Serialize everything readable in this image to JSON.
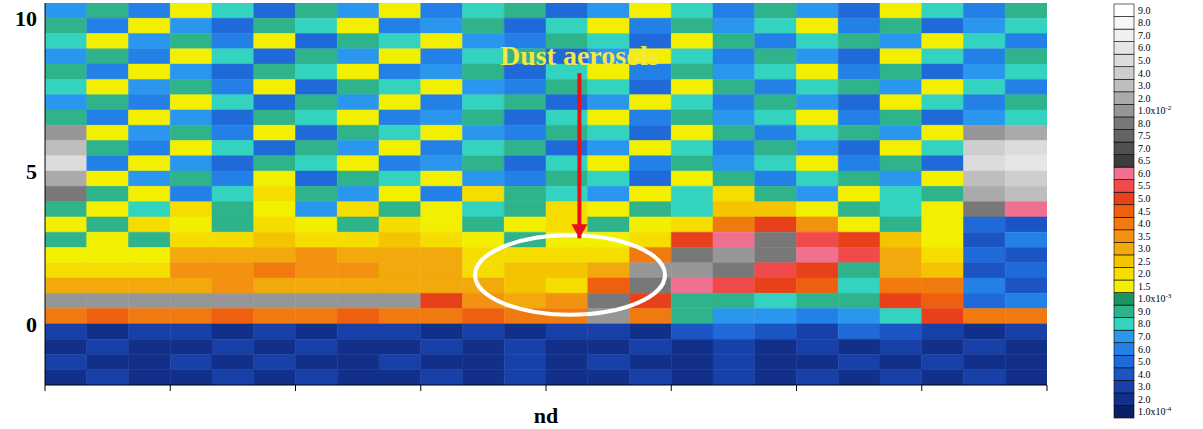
{
  "chart_data": {
    "type": "heatmap",
    "xlabel": "nd",
    "xlim": [
      0,
      24
    ],
    "xticks": [
      0,
      3,
      6,
      9,
      12,
      15,
      18,
      21,
      24
    ],
    "ylim": [
      -2,
      10.5
    ],
    "yticks": [
      0,
      5,
      10
    ],
    "tick_labels": "y",
    "annotations": [
      {
        "text": "Dust aerosols",
        "xy": [
          12.8,
          2.8
        ],
        "xytext": [
          12.8,
          8.2
        ],
        "region": {
          "x": [
            10.3,
            14.85
          ],
          "y": [
            0.3,
            2.9
          ]
        }
      }
    ],
    "x_edges": [
      0,
      1,
      2,
      3,
      4,
      5,
      6,
      7,
      8,
      9,
      10,
      11,
      12,
      13,
      14,
      15,
      16,
      17,
      18,
      19,
      20,
      21,
      22,
      23,
      24
    ],
    "y_edges": [
      10.5,
      10,
      9.5,
      9,
      8.5,
      8,
      7.5,
      7,
      6.5,
      6,
      5.5,
      5,
      4.5,
      4,
      3.5,
      3,
      2.5,
      2,
      1.5,
      1,
      0.5,
      0,
      -0.5,
      -1,
      -1.5,
      -2
    ],
    "cells": [
      [
        0.0007,
        0.0009,
        0.0006,
        0.0015,
        0.0008,
        0.0005,
        0.0009,
        0.0007,
        0.0015,
        0.0006,
        0.0008,
        0.0009,
        0.0005,
        0.0007,
        0.0015,
        0.0008,
        0.0006,
        0.0009,
        0.0007,
        0.0005,
        0.0015,
        0.0008,
        0.0006,
        0.0009
      ],
      [
        0.0009,
        0.0006,
        0.0015,
        0.0007,
        0.0005,
        0.0009,
        0.0008,
        0.0015,
        0.0006,
        0.0007,
        0.0009,
        0.0005,
        0.0008,
        0.0015,
        0.0006,
        0.0009,
        0.0007,
        0.0008,
        0.0015,
        0.0006,
        0.0009,
        0.0005,
        0.0007,
        0.0008
      ],
      [
        0.0008,
        0.0015,
        0.0007,
        0.0009,
        0.0006,
        0.0015,
        0.0005,
        0.0009,
        0.0008,
        0.0015,
        0.0007,
        0.0006,
        0.0009,
        0.0008,
        0.0005,
        0.0015,
        0.0009,
        0.0006,
        0.0008,
        0.0009,
        0.0007,
        0.0015,
        0.0008,
        0.0006
      ],
      [
        0.0007,
        0.0009,
        0.0006,
        0.0015,
        0.0008,
        0.0005,
        0.0009,
        0.0007,
        0.0015,
        0.0006,
        0.0008,
        0.0009,
        0.0005,
        0.0007,
        0.0015,
        0.0008,
        0.0006,
        0.0009,
        0.0007,
        0.0005,
        0.0015,
        0.0008,
        0.0006,
        0.0009
      ],
      [
        0.0009,
        0.0006,
        0.0015,
        0.0007,
        0.0005,
        0.0009,
        0.0008,
        0.0015,
        0.0006,
        0.0007,
        0.0009,
        0.0005,
        0.0008,
        0.0015,
        0.0006,
        0.0009,
        0.0007,
        0.0008,
        0.0015,
        0.0006,
        0.0009,
        0.0005,
        0.0007,
        0.0008
      ],
      [
        0.0008,
        0.0015,
        0.0007,
        0.0009,
        0.0006,
        0.0015,
        0.0005,
        0.0009,
        0.0008,
        0.0015,
        0.0007,
        0.0006,
        0.0009,
        0.0008,
        0.0005,
        0.0015,
        0.0009,
        0.0006,
        0.0008,
        0.0009,
        0.0007,
        0.0015,
        0.0008,
        0.0006
      ],
      [
        0.0007,
        0.0009,
        0.0006,
        0.0015,
        0.0008,
        0.0005,
        0.0009,
        0.0007,
        0.0015,
        0.0006,
        0.0008,
        0.0009,
        0.0005,
        0.0007,
        0.0015,
        0.0008,
        0.0006,
        0.0009,
        0.0007,
        0.0005,
        0.0015,
        0.0008,
        0.0006,
        0.0009
      ],
      [
        0.0009,
        0.0006,
        0.0015,
        0.0007,
        0.0005,
        0.0009,
        0.0008,
        0.0015,
        0.0006,
        0.0007,
        0.0009,
        0.0005,
        0.0008,
        0.0015,
        0.0006,
        0.0009,
        0.0007,
        0.0008,
        0.0015,
        0.0006,
        0.0009,
        0.0005,
        0.0007,
        0.0008
      ],
      [
        0.01,
        0.0015,
        0.0007,
        0.0009,
        0.0006,
        0.0015,
        0.0005,
        0.0009,
        0.0008,
        0.0015,
        0.0007,
        0.0006,
        0.0009,
        0.0008,
        0.0005,
        0.0015,
        0.0009,
        0.0006,
        0.0008,
        0.0009,
        0.0007,
        0.0015,
        0.01,
        0.02
      ],
      [
        0.03,
        0.0009,
        0.0006,
        0.0015,
        0.0008,
        0.0005,
        0.0009,
        0.0007,
        0.0015,
        0.0006,
        0.0008,
        0.0009,
        0.0005,
        0.0007,
        0.0015,
        0.0008,
        0.0006,
        0.0009,
        0.0007,
        0.0005,
        0.0015,
        0.0008,
        0.04,
        0.05
      ],
      [
        0.05,
        0.0006,
        0.0015,
        0.0007,
        0.0005,
        0.0009,
        0.0008,
        0.0015,
        0.0006,
        0.0007,
        0.0009,
        0.0005,
        0.0008,
        0.0015,
        0.0006,
        0.0009,
        0.0007,
        0.0008,
        0.0015,
        0.0006,
        0.0009,
        0.0005,
        0.05,
        0.06
      ],
      [
        0.02,
        0.0015,
        0.0007,
        0.0009,
        0.0006,
        0.0015,
        0.0005,
        0.0009,
        0.0008,
        0.0015,
        0.0007,
        0.0006,
        0.0009,
        0.0008,
        0.0005,
        0.0015,
        0.0009,
        0.0006,
        0.0008,
        0.0009,
        0.0007,
        0.0015,
        0.03,
        0.04
      ],
      [
        0.008,
        0.0009,
        0.0015,
        0.0006,
        0.0008,
        0.002,
        0.0009,
        0.0007,
        0.0015,
        0.0006,
        0.002,
        0.0009,
        0.0008,
        0.0007,
        0.0015,
        0.0008,
        0.002,
        0.0009,
        0.0007,
        0.0015,
        0.0008,
        0.0009,
        0.02,
        0.03
      ],
      [
        0.0009,
        0.0015,
        0.0008,
        0.002,
        0.0009,
        0.0015,
        0.0007,
        0.002,
        0.0009,
        0.0015,
        0.0008,
        0.0009,
        0.002,
        0.0015,
        0.0009,
        0.0008,
        0.0025,
        0.0025,
        0.0015,
        0.0009,
        0.0008,
        0.0015,
        0.008,
        0.006
      ],
      [
        0.0015,
        0.0009,
        0.002,
        0.0015,
        0.0009,
        0.002,
        0.0015,
        0.0009,
        0.002,
        0.0015,
        0.0009,
        0.0015,
        0.002,
        0.0009,
        0.0015,
        0.002,
        0.004,
        0.005,
        0.0035,
        0.0015,
        0.0009,
        0.0015,
        0.0005,
        0.0004
      ],
      [
        0.0009,
        0.0015,
        0.0009,
        0.002,
        0.002,
        0.0025,
        0.002,
        0.002,
        0.0025,
        0.002,
        0.0015,
        0.0009,
        0.0015,
        0.0015,
        0.002,
        0.005,
        0.006,
        0.008,
        0.0055,
        0.005,
        0.0025,
        0.0015,
        0.0004,
        0.0006
      ],
      [
        0.0015,
        0.0015,
        0.0015,
        0.003,
        0.003,
        0.003,
        0.0035,
        0.003,
        0.003,
        0.003,
        0.002,
        0.002,
        0.002,
        0.002,
        0.004,
        0.008,
        0.01,
        0.008,
        0.006,
        0.0055,
        0.003,
        0.002,
        0.0005,
        0.0004
      ],
      [
        0.002,
        0.002,
        0.002,
        0.0035,
        0.0035,
        0.004,
        0.0035,
        0.0035,
        0.003,
        0.003,
        0.002,
        0.0025,
        0.0025,
        0.003,
        0.01,
        0.01,
        0.009,
        0.0055,
        0.005,
        0.0009,
        0.003,
        0.0025,
        0.0004,
        0.0005
      ],
      [
        0.003,
        0.003,
        0.003,
        0.003,
        0.0035,
        0.003,
        0.003,
        0.003,
        0.003,
        0.003,
        0.003,
        0.0025,
        0.002,
        0.0045,
        0.009,
        0.006,
        0.0055,
        0.005,
        0.0045,
        0.0008,
        0.004,
        0.004,
        0.0006,
        0.0004
      ],
      [
        0.01,
        0.01,
        0.01,
        0.01,
        0.01,
        0.01,
        0.01,
        0.01,
        0.01,
        0.005,
        0.0035,
        0.003,
        0.0035,
        0.008,
        0.005,
        0.0009,
        0.0009,
        0.0008,
        0.0009,
        0.0009,
        0.005,
        0.0045,
        0.0005,
        0.0006
      ],
      [
        0.004,
        0.0045,
        0.004,
        0.004,
        0.0045,
        0.004,
        0.004,
        0.0045,
        0.004,
        0.004,
        0.0045,
        0.004,
        0.004,
        0.01,
        0.004,
        0.0009,
        0.0007,
        0.0007,
        0.0006,
        0.0007,
        0.0008,
        0.005,
        0.004,
        0.004
      ],
      [
        0.0003,
        0.0002,
        0.0003,
        0.0003,
        0.0002,
        0.0003,
        0.0002,
        0.0003,
        0.0003,
        0.0002,
        0.0003,
        0.0002,
        0.0003,
        0.0003,
        0.0002,
        0.0004,
        0.0005,
        0.0004,
        0.0003,
        0.0005,
        0.0004,
        0.0003,
        0.0002,
        0.0003
      ],
      [
        0.0002,
        0.0003,
        0.0002,
        0.0002,
        0.0003,
        0.0002,
        0.0003,
        0.0002,
        0.0002,
        0.0003,
        0.0002,
        0.0003,
        0.0002,
        0.0002,
        0.0003,
        0.0002,
        0.0003,
        0.0002,
        0.0003,
        0.0002,
        0.0003,
        0.0002,
        0.0003,
        0.0002
      ],
      [
        0.0003,
        0.0002,
        0.0002,
        0.0003,
        0.0002,
        0.0003,
        0.0002,
        0.0002,
        0.0003,
        0.0002,
        0.0002,
        0.0003,
        0.0002,
        0.0003,
        0.0002,
        0.0002,
        0.0003,
        0.0002,
        0.0002,
        0.0003,
        0.0002,
        0.0003,
        0.0002,
        0.0002
      ],
      [
        0.0002,
        0.0003,
        0.0002,
        0.0002,
        0.0003,
        0.0002,
        0.0003,
        0.0002,
        0.0002,
        0.0003,
        0.0002,
        0.0003,
        0.0002,
        0.0002,
        0.0003,
        0.0002,
        0.0003,
        0.0002,
        0.0003,
        0.0002,
        0.0003,
        0.0002,
        0.0003,
        0.0002
      ]
    ],
    "colorbar": {
      "ticks": [
        {
          "value": 0.0001,
          "label": "1.0x10-4"
        },
        {
          "value": 0.0002,
          "label": "2.0"
        },
        {
          "value": 0.0003,
          "label": "3.0"
        },
        {
          "value": 0.0004,
          "label": "4.0"
        },
        {
          "value": 0.0005,
          "label": "5.0"
        },
        {
          "value": 0.0006,
          "label": "6.0"
        },
        {
          "value": 0.0007,
          "label": "7.0"
        },
        {
          "value": 0.0008,
          "label": "8.0"
        },
        {
          "value": 0.0009,
          "label": "9.0"
        },
        {
          "value": 0.001,
          "label": "1.0x10-3"
        },
        {
          "value": 0.0015,
          "label": "1.5"
        },
        {
          "value": 0.002,
          "label": "2.0"
        },
        {
          "value": 0.0025,
          "label": "2.5"
        },
        {
          "value": 0.003,
          "label": "3.0"
        },
        {
          "value": 0.0035,
          "label": "3.5"
        },
        {
          "value": 0.004,
          "label": "4.0"
        },
        {
          "value": 0.0045,
          "label": "4.5"
        },
        {
          "value": 0.005,
          "label": "5.0"
        },
        {
          "value": 0.0055,
          "label": "5.5"
        },
        {
          "value": 0.006,
          "label": "6.0"
        },
        {
          "value": 0.0065,
          "label": "6.5"
        },
        {
          "value": 0.007,
          "label": "7.0"
        },
        {
          "value": 0.0075,
          "label": "7.5"
        },
        {
          "value": 0.008,
          "label": "8.0"
        },
        {
          "value": 0.01,
          "label": "1.0x10-2"
        },
        {
          "value": 0.02,
          "label": "2.0"
        },
        {
          "value": 0.03,
          "label": "3.0"
        },
        {
          "value": 0.04,
          "label": "4.0"
        },
        {
          "value": 0.05,
          "label": "5.0"
        },
        {
          "value": 0.06,
          "label": "6.0"
        },
        {
          "value": 0.07,
          "label": "7.0"
        },
        {
          "value": 0.08,
          "label": "8.0"
        },
        {
          "value": 0.09,
          "label": "9.0"
        }
      ],
      "colors": [
        "#0b1f66",
        "#12308a",
        "#1740a8",
        "#1b55c4",
        "#1f6ad8",
        "#2380e6",
        "#2a96ee",
        "#33d3c0",
        "#2fb38a",
        "#1e9460",
        "#f2f000",
        "#f5dd00",
        "#f5c400",
        "#f2a90c",
        "#f29210",
        "#f07a10",
        "#ee6010",
        "#e8401a",
        "#f04a4a",
        "#f07090",
        "#3c3c3c",
        "#505050",
        "#646464",
        "#787878",
        "#969696",
        "#aaaaaa",
        "#bebebe",
        "#cecece",
        "#dcdcdc",
        "#e6e6e6",
        "#f0f0f0",
        "#f7f7f7",
        "#ffffff"
      ]
    }
  }
}
